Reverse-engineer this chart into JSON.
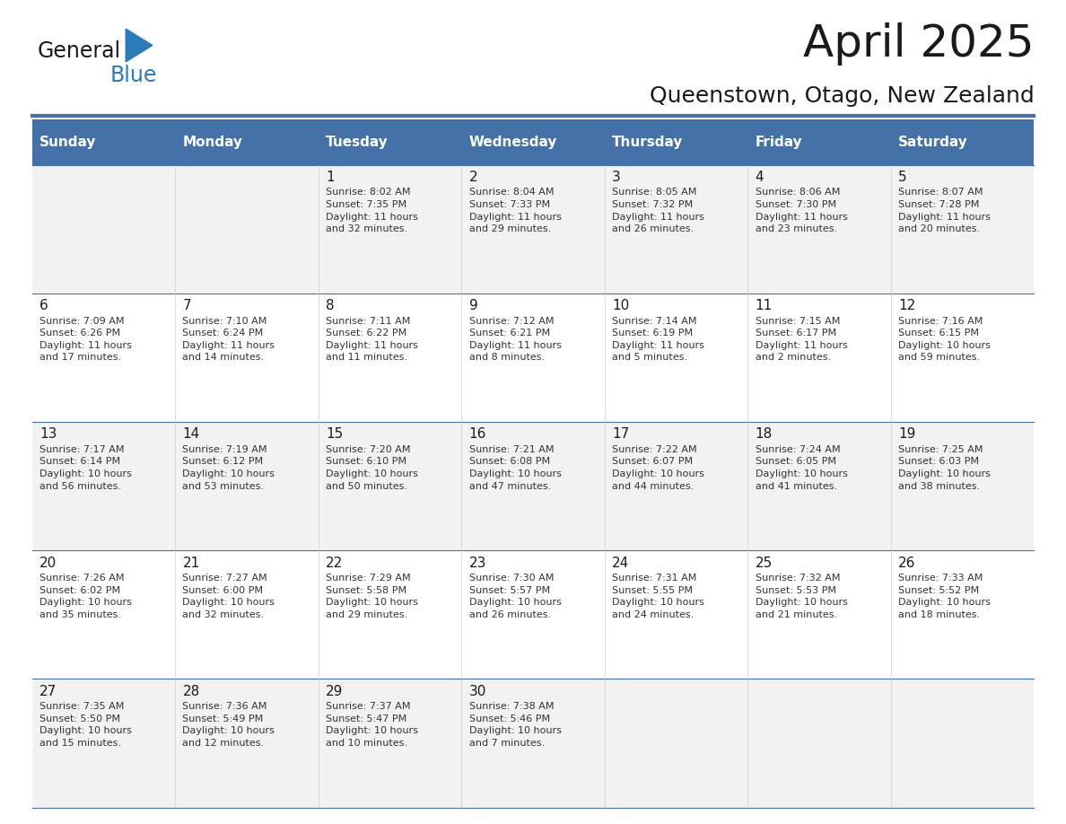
{
  "title": "April 2025",
  "subtitle": "Queenstown, Otago, New Zealand",
  "header_bg": "#4472A8",
  "header_text": "#FFFFFF",
  "row_bg_odd": "#F2F2F2",
  "row_bg_even": "#FFFFFF",
  "border_color": "#4472A8",
  "day_headers": [
    "Sunday",
    "Monday",
    "Tuesday",
    "Wednesday",
    "Thursday",
    "Friday",
    "Saturday"
  ],
  "weeks": [
    [
      {
        "day": "",
        "info": ""
      },
      {
        "day": "",
        "info": ""
      },
      {
        "day": "1",
        "info": "Sunrise: 8:02 AM\nSunset: 7:35 PM\nDaylight: 11 hours\nand 32 minutes."
      },
      {
        "day": "2",
        "info": "Sunrise: 8:04 AM\nSunset: 7:33 PM\nDaylight: 11 hours\nand 29 minutes."
      },
      {
        "day": "3",
        "info": "Sunrise: 8:05 AM\nSunset: 7:32 PM\nDaylight: 11 hours\nand 26 minutes."
      },
      {
        "day": "4",
        "info": "Sunrise: 8:06 AM\nSunset: 7:30 PM\nDaylight: 11 hours\nand 23 minutes."
      },
      {
        "day": "5",
        "info": "Sunrise: 8:07 AM\nSunset: 7:28 PM\nDaylight: 11 hours\nand 20 minutes."
      }
    ],
    [
      {
        "day": "6",
        "info": "Sunrise: 7:09 AM\nSunset: 6:26 PM\nDaylight: 11 hours\nand 17 minutes."
      },
      {
        "day": "7",
        "info": "Sunrise: 7:10 AM\nSunset: 6:24 PM\nDaylight: 11 hours\nand 14 minutes."
      },
      {
        "day": "8",
        "info": "Sunrise: 7:11 AM\nSunset: 6:22 PM\nDaylight: 11 hours\nand 11 minutes."
      },
      {
        "day": "9",
        "info": "Sunrise: 7:12 AM\nSunset: 6:21 PM\nDaylight: 11 hours\nand 8 minutes."
      },
      {
        "day": "10",
        "info": "Sunrise: 7:14 AM\nSunset: 6:19 PM\nDaylight: 11 hours\nand 5 minutes."
      },
      {
        "day": "11",
        "info": "Sunrise: 7:15 AM\nSunset: 6:17 PM\nDaylight: 11 hours\nand 2 minutes."
      },
      {
        "day": "12",
        "info": "Sunrise: 7:16 AM\nSunset: 6:15 PM\nDaylight: 10 hours\nand 59 minutes."
      }
    ],
    [
      {
        "day": "13",
        "info": "Sunrise: 7:17 AM\nSunset: 6:14 PM\nDaylight: 10 hours\nand 56 minutes."
      },
      {
        "day": "14",
        "info": "Sunrise: 7:19 AM\nSunset: 6:12 PM\nDaylight: 10 hours\nand 53 minutes."
      },
      {
        "day": "15",
        "info": "Sunrise: 7:20 AM\nSunset: 6:10 PM\nDaylight: 10 hours\nand 50 minutes."
      },
      {
        "day": "16",
        "info": "Sunrise: 7:21 AM\nSunset: 6:08 PM\nDaylight: 10 hours\nand 47 minutes."
      },
      {
        "day": "17",
        "info": "Sunrise: 7:22 AM\nSunset: 6:07 PM\nDaylight: 10 hours\nand 44 minutes."
      },
      {
        "day": "18",
        "info": "Sunrise: 7:24 AM\nSunset: 6:05 PM\nDaylight: 10 hours\nand 41 minutes."
      },
      {
        "day": "19",
        "info": "Sunrise: 7:25 AM\nSunset: 6:03 PM\nDaylight: 10 hours\nand 38 minutes."
      }
    ],
    [
      {
        "day": "20",
        "info": "Sunrise: 7:26 AM\nSunset: 6:02 PM\nDaylight: 10 hours\nand 35 minutes."
      },
      {
        "day": "21",
        "info": "Sunrise: 7:27 AM\nSunset: 6:00 PM\nDaylight: 10 hours\nand 32 minutes."
      },
      {
        "day": "22",
        "info": "Sunrise: 7:29 AM\nSunset: 5:58 PM\nDaylight: 10 hours\nand 29 minutes."
      },
      {
        "day": "23",
        "info": "Sunrise: 7:30 AM\nSunset: 5:57 PM\nDaylight: 10 hours\nand 26 minutes."
      },
      {
        "day": "24",
        "info": "Sunrise: 7:31 AM\nSunset: 5:55 PM\nDaylight: 10 hours\nand 24 minutes."
      },
      {
        "day": "25",
        "info": "Sunrise: 7:32 AM\nSunset: 5:53 PM\nDaylight: 10 hours\nand 21 minutes."
      },
      {
        "day": "26",
        "info": "Sunrise: 7:33 AM\nSunset: 5:52 PM\nDaylight: 10 hours\nand 18 minutes."
      }
    ],
    [
      {
        "day": "27",
        "info": "Sunrise: 7:35 AM\nSunset: 5:50 PM\nDaylight: 10 hours\nand 15 minutes."
      },
      {
        "day": "28",
        "info": "Sunrise: 7:36 AM\nSunset: 5:49 PM\nDaylight: 10 hours\nand 12 minutes."
      },
      {
        "day": "29",
        "info": "Sunrise: 7:37 AM\nSunset: 5:47 PM\nDaylight: 10 hours\nand 10 minutes."
      },
      {
        "day": "30",
        "info": "Sunrise: 7:38 AM\nSunset: 5:46 PM\nDaylight: 10 hours\nand 7 minutes."
      },
      {
        "day": "",
        "info": ""
      },
      {
        "day": "",
        "info": ""
      },
      {
        "day": "",
        "info": ""
      }
    ]
  ],
  "logo_text_general": "General",
  "logo_text_blue": "Blue",
  "fig_width": 11.88,
  "fig_height": 9.18,
  "title_fontsize": 36,
  "subtitle_fontsize": 18,
  "header_fontsize": 11,
  "day_num_fontsize": 11,
  "info_fontsize": 8
}
